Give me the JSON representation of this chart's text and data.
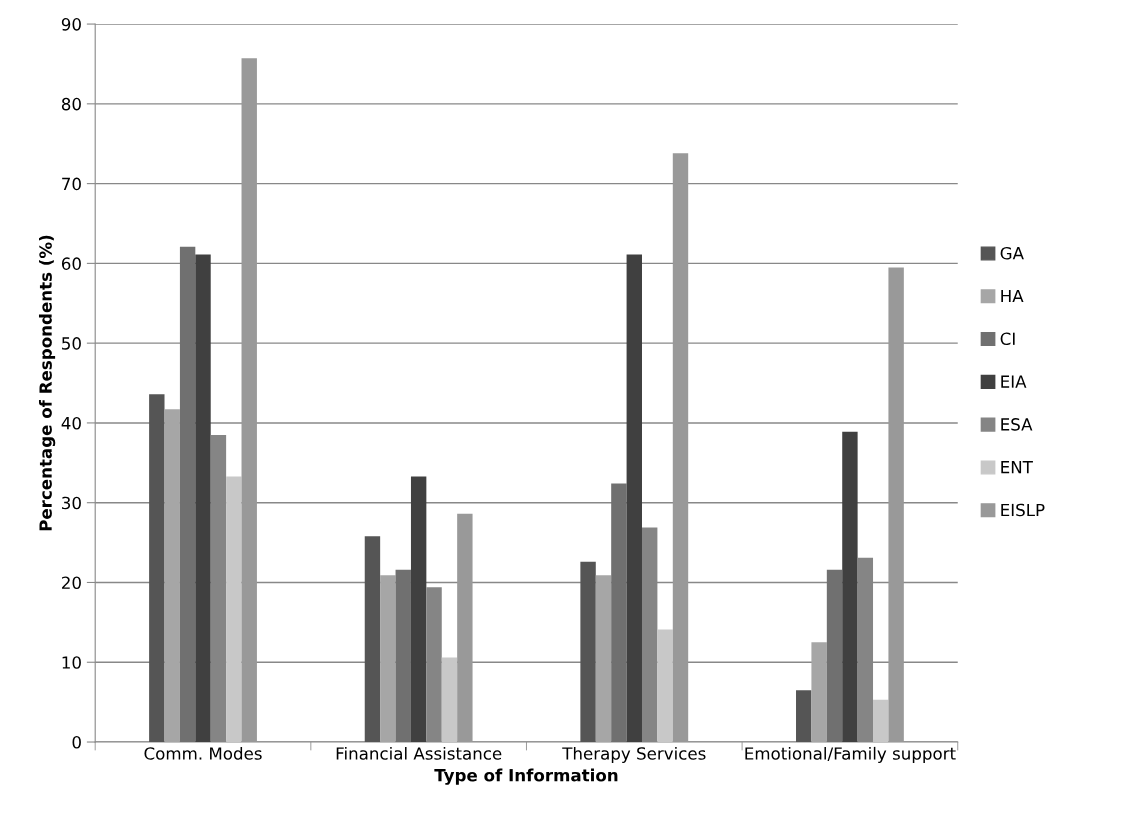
{
  "chart_data": {
    "type": "bar",
    "xlabel": "Type of Information",
    "ylabel": "Percentage of Respondents (%)",
    "categories": [
      "Comm. Modes",
      "Financial Assistance",
      "Therapy Services",
      "Emotional/Family support"
    ],
    "series": [
      {
        "name": "GA",
        "color": "#555555",
        "values": [
          43.6,
          25.8,
          22.6,
          6.5
        ]
      },
      {
        "name": "HA",
        "color": "#a6a6a6",
        "values": [
          41.7,
          20.9,
          20.9,
          12.5
        ]
      },
      {
        "name": "CI",
        "color": "#707070",
        "values": [
          62.1,
          21.6,
          32.4,
          21.6
        ]
      },
      {
        "name": "EIA",
        "color": "#404040",
        "values": [
          61.1,
          33.3,
          61.1,
          38.9
        ]
      },
      {
        "name": "ESA",
        "color": "#858585",
        "values": [
          38.5,
          19.4,
          26.9,
          23.1
        ]
      },
      {
        "name": "ENT",
        "color": "#c8c8c8",
        "values": [
          33.3,
          10.6,
          14.1,
          5.3
        ]
      },
      {
        "name": "EISLP",
        "color": "#999999",
        "values": [
          85.7,
          28.6,
          73.8,
          59.5
        ]
      }
    ],
    "ylim": [
      0,
      90
    ],
    "yticks": [
      0,
      10,
      20,
      30,
      40,
      50,
      60,
      70,
      80,
      90
    ],
    "grid": "y",
    "legend": "right"
  }
}
